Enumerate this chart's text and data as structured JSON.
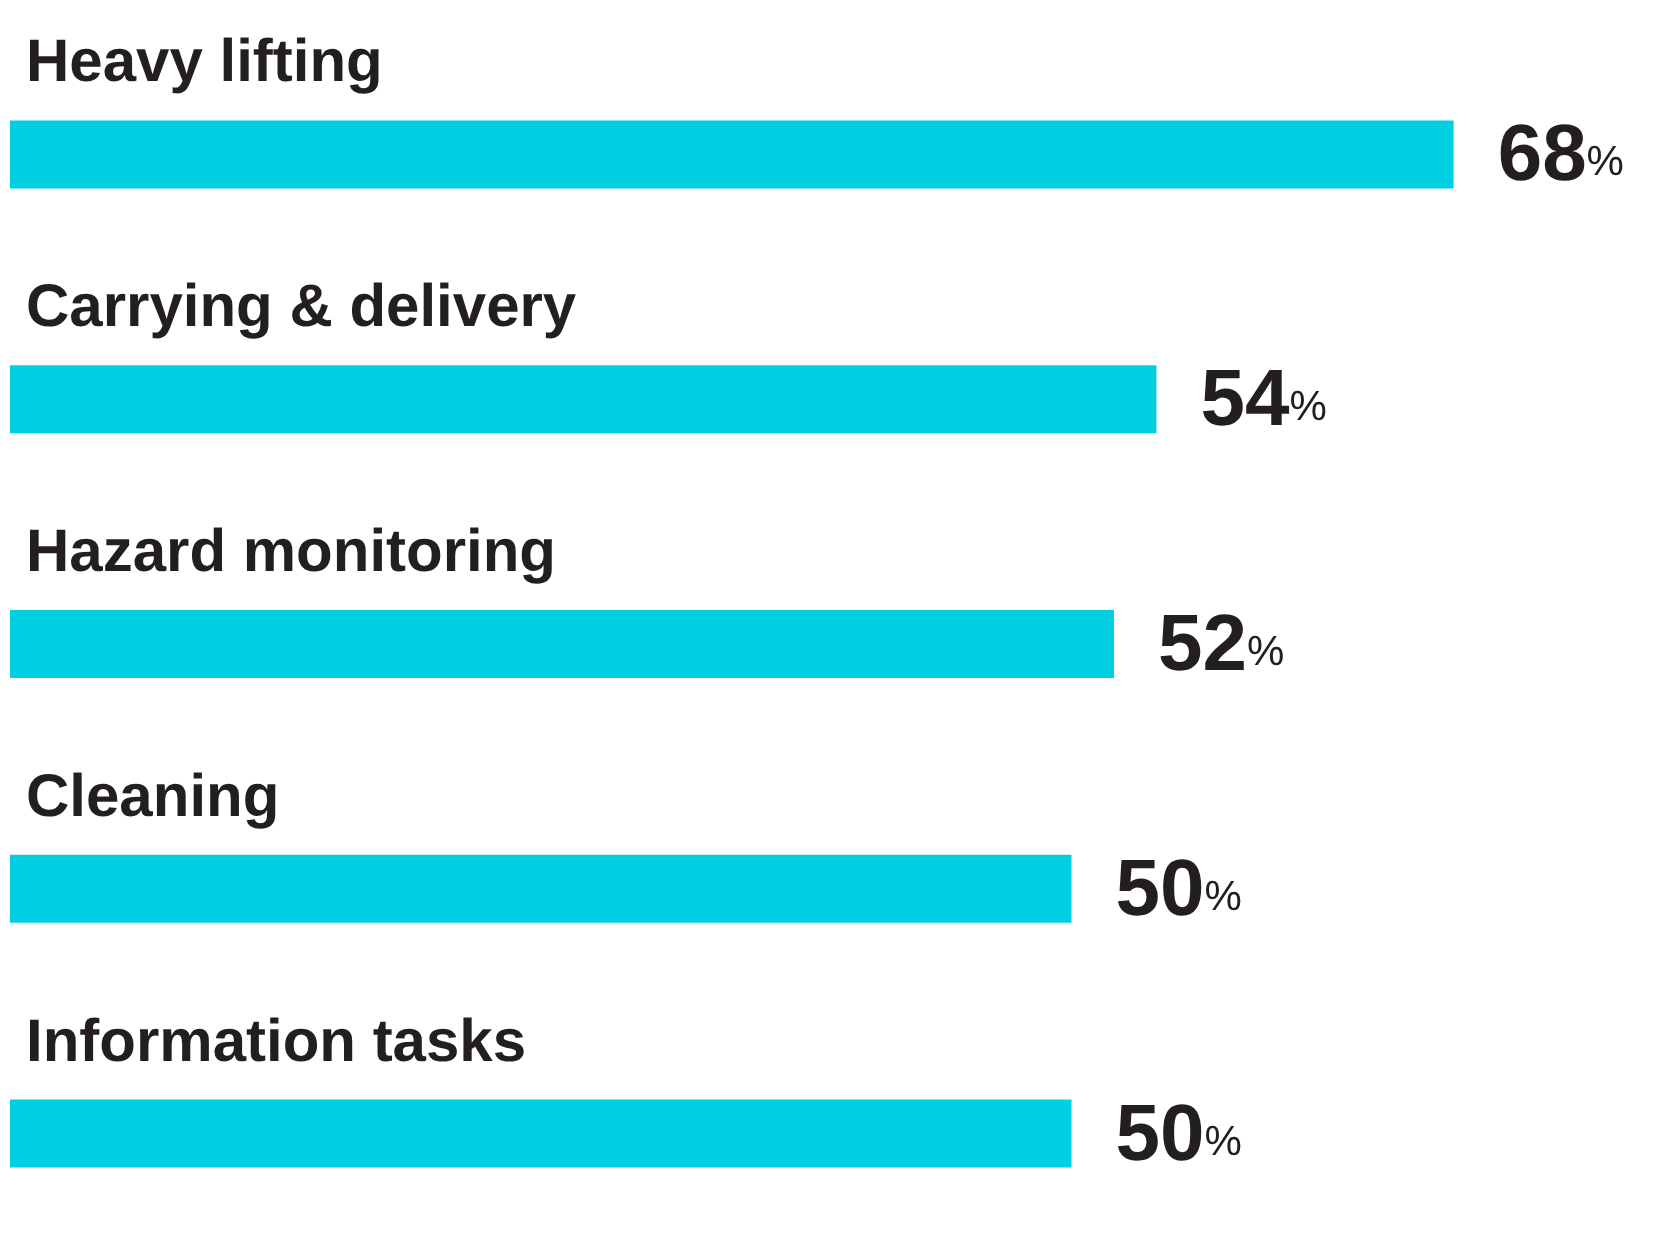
{
  "chart_data": {
    "type": "bar",
    "orientation": "horizontal",
    "categories": [
      "Heavy lifting",
      "Carrying & delivery",
      "Hazard monitoring",
      "Cleaning",
      "Information tasks"
    ],
    "values": [
      68,
      54,
      52,
      50,
      50
    ],
    "value_labels": [
      "68%",
      "54%",
      "52%",
      "50%",
      "50%"
    ],
    "color": "#00cfe2"
  }
}
